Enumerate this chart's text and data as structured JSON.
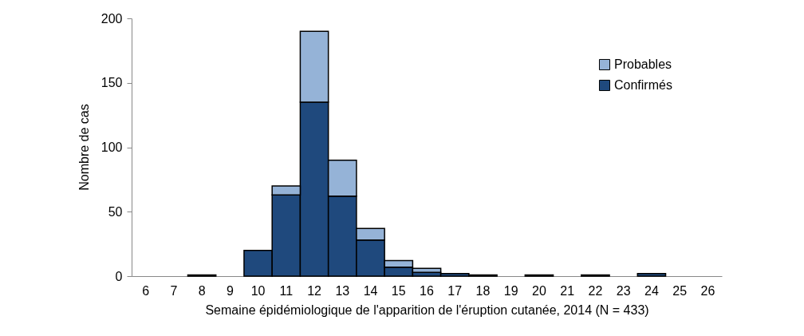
{
  "chart_data": {
    "type": "bar",
    "stacked": true,
    "xlabel": "Semaine épidémiologique de l'apparition de l'éruption cutanée, 2014 (N = 433)",
    "ylabel": "Nombre de cas",
    "categories": [
      "6",
      "7",
      "8",
      "9",
      "10",
      "11",
      "12",
      "13",
      "14",
      "15",
      "16",
      "17",
      "18",
      "19",
      "20",
      "21",
      "22",
      "23",
      "24",
      "25",
      "26"
    ],
    "series": [
      {
        "name": "Confirmés",
        "color": "#1f497d",
        "values": [
          0,
          0,
          1,
          0,
          20,
          63,
          135,
          62,
          28,
          7,
          3,
          2,
          1,
          0,
          1,
          0,
          1,
          0,
          2,
          0,
          0
        ]
      },
      {
        "name": "Probables",
        "color": "#95b3d7",
        "values": [
          0,
          0,
          0,
          0,
          0,
          7,
          55,
          28,
          9,
          5,
          3,
          0,
          0,
          0,
          0,
          0,
          0,
          0,
          0,
          0,
          0
        ]
      }
    ],
    "ylim": [
      0,
      200
    ],
    "yticks": [
      0,
      50,
      100,
      150,
      200
    ],
    "grid": false,
    "legend": "top right"
  }
}
